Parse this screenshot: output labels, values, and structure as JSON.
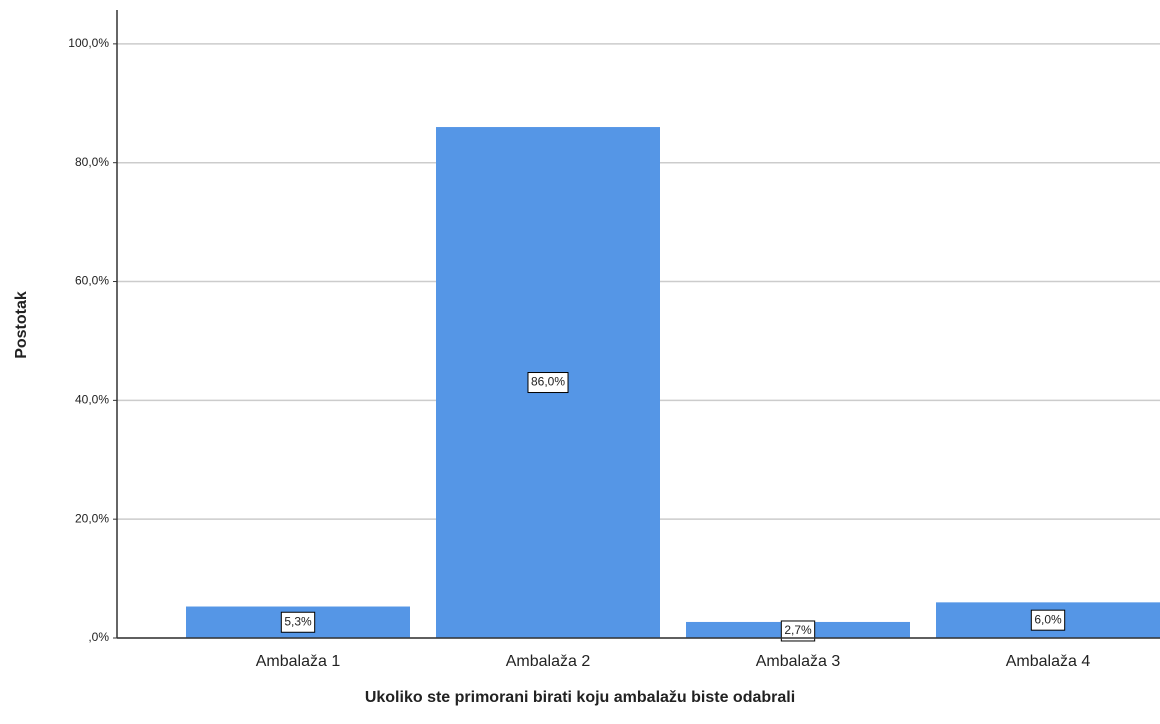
{
  "chart_data": {
    "type": "bar",
    "categories": [
      "Ambalaža 1",
      "Ambalaža 2",
      "Ambalaža 3",
      "Ambalaža 4"
    ],
    "values": [
      5.3,
      86.0,
      2.7,
      6.0
    ],
    "value_labels": [
      "5,3%",
      "86,0%",
      "2,7%",
      "6,0%"
    ],
    "color": "#5596e6",
    "x_label": "Ukoliko ste primorani birati koju ambalažu biste odabrali",
    "y_label": "Postotak",
    "ylim": [
      0,
      105.7
    ],
    "yticks": [
      {
        "value": 0,
        "label": ",0%"
      },
      {
        "value": 20,
        "label": "20,0%"
      },
      {
        "value": 40,
        "label": "40,0%"
      },
      {
        "value": 60,
        "label": "60,0%"
      },
      {
        "value": 80,
        "label": "80,0%"
      },
      {
        "value": 100,
        "label": "100,0%"
      }
    ],
    "grid": true
  }
}
